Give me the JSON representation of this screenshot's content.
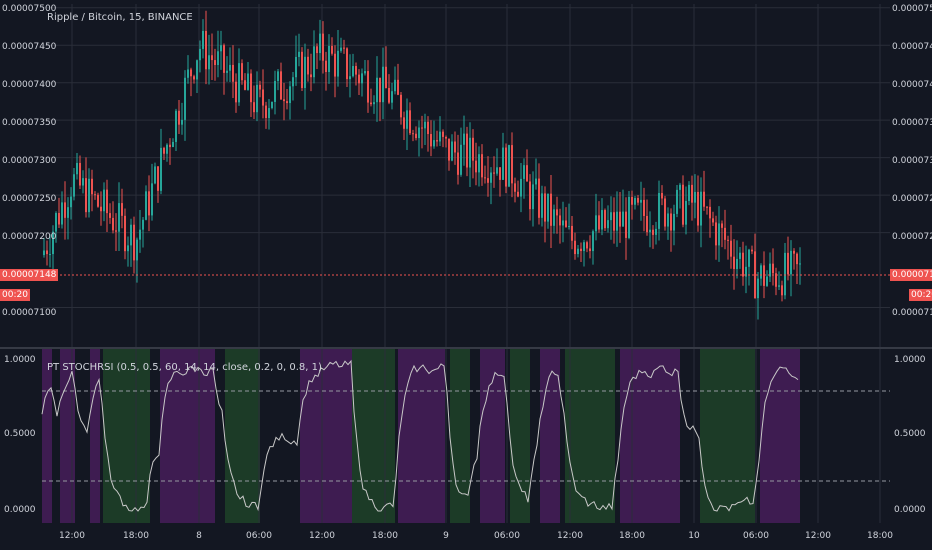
{
  "main": {
    "title": "Ripple / Bitcoin, 15, BINANCE",
    "y_ticks": [
      "0.00007500",
      "0.00007450",
      "0.00007400",
      "0.00007350",
      "0.00007300",
      "0.00007250",
      "0.00007200",
      "0.00007100"
    ],
    "last_price": "0.00007148",
    "countdown": "00:20"
  },
  "indicator": {
    "title": "PT STOCHRSI (0.5, 0.5, 60, 14, 14, close, 0.2, 0, 0.8, 1)",
    "y_ticks": [
      "1.0000",
      "0.5000",
      "0.0000"
    ]
  },
  "x_axis": [
    "12:00",
    "18:00",
    "8",
    "06:00",
    "12:00",
    "18:00",
    "9",
    "06:00",
    "12:00",
    "18:00",
    "10",
    "06:00",
    "12:00",
    "18:00"
  ],
  "colors": {
    "background": "#131722",
    "up_candle": "#26a69a",
    "down_candle": "#ef5350",
    "price_line": "#ef5350",
    "overbought_zone": "#8e24aa",
    "oversold_zone": "#2e7d32"
  },
  "chart_data": {
    "type": "candlestick",
    "title": "Ripple / Bitcoin, 15, BINANCE",
    "y_range": [
      7.05e-05,
      7.505e-05
    ],
    "x": [
      "12:00",
      "18:00",
      "8",
      "06:00",
      "12:00",
      "18:00",
      "9",
      "06:00",
      "12:00",
      "18:00",
      "10",
      "06:00",
      "12:00",
      "18:00"
    ],
    "close_path": [
      {
        "t": "start",
        "price": 7.17e-05
      },
      {
        "t": "12:00",
        "price": 7.27e-05
      },
      {
        "t": "18:00",
        "price": 7.19e-05
      },
      {
        "t": "8",
        "price": 7.45e-05
      },
      {
        "t": "06:00",
        "price": 7.37e-05
      },
      {
        "t": "12:00",
        "price": 7.44e-05
      },
      {
        "t": "18:00",
        "price": 7.39e-05
      },
      {
        "t": "9",
        "price": 7.31e-05
      },
      {
        "t": "06:00",
        "price": 7.29e-05
      },
      {
        "t": "12:00",
        "price": 7.19e-05
      },
      {
        "t": "18:00",
        "price": 7.22e-05
      },
      {
        "t": "10",
        "price": 7.24e-05
      },
      {
        "t": "06:00",
        "price": 7.14e-05
      },
      {
        "t": "last",
        "price": 7.148e-05
      }
    ],
    "last_price": 7.148e-05
  }
}
